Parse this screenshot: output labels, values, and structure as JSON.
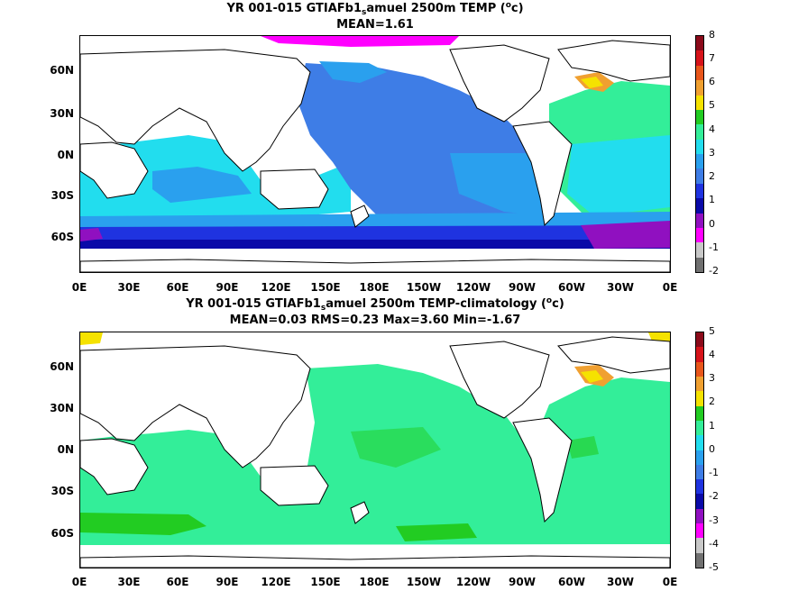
{
  "panel1": {
    "title_pre": "YR 001-015 GTIAFb1",
    "title_sub": "s",
    "title_post": "amuel 2500m TEMP (",
    "title_sup": "o",
    "title_end": "c)",
    "stats": "MEAN=1.61",
    "colorbar_labels": [
      "8",
      "7",
      "6",
      "5",
      "4",
      "3",
      "2",
      "1",
      "0",
      "-1",
      "-2"
    ],
    "colorbar_colors": [
      "#8b0a1a",
      "#d6131a",
      "#e8561b",
      "#f0a030",
      "#f5e200",
      "#22cc22",
      "#33ee99",
      "#22ddee",
      "#2aa0ee",
      "#3e7de6",
      "#1f33e0",
      "#0a0aa8",
      "#9010c0",
      "#ff00ff",
      "#c8c8c8",
      "#707070"
    ]
  },
  "panel2": {
    "title_pre": "YR 001-015 GTIAFb1",
    "title_sub": "s",
    "title_post": "amuel 2500m TEMP-climatology (",
    "title_sup": "o",
    "title_end": "c)",
    "stats": "MEAN=0.03   RMS=0.23   Max=3.60   Min=-1.67",
    "colorbar_labels": [
      "5",
      "4",
      "3",
      "2",
      "1",
      "0",
      "-1",
      "-2",
      "-3",
      "-4",
      "-5"
    ],
    "colorbar_colors": [
      "#8b0a1a",
      "#d6131a",
      "#e8561b",
      "#f0a030",
      "#f5e200",
      "#22cc22",
      "#33ee99",
      "#22ddee",
      "#2aa0ee",
      "#3e7de6",
      "#1f33e0",
      "#0a0aa8",
      "#9010c0",
      "#ff00ff",
      "#c8c8c8",
      "#707070"
    ]
  },
  "y_labels": [
    "60N",
    "30N",
    "0N",
    "30S",
    "60S"
  ],
  "x_labels": [
    "0E",
    "30E",
    "60E",
    "90E",
    "120E",
    "150E",
    "180E",
    "150W",
    "120W",
    "90W",
    "60W",
    "30W",
    "0E"
  ]
}
